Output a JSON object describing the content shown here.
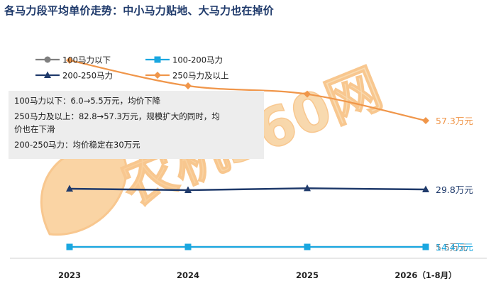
{
  "title": "各马力段平均单价走势：中小马力贴地、大马力也在掉价",
  "note_lines": [
    "100马力以下：6.0→5.5万元，均价下降",
    "250马力及以上：82.8→57.3万元，规模扩大的同时，均",
    "价也在下滑",
    "200-250马力：均价稳定在30万元"
  ],
  "watermark": "农机360网",
  "colors": {
    "below100": "#7f7f7f",
    "r100_200": "#1aa7e0",
    "r200_250": "#1f3a6b",
    "above250": "#f0964a"
  },
  "chart_data": {
    "type": "line",
    "categories": [
      "2023",
      "2024",
      "2025",
      "2026（1-8月）"
    ],
    "legend_position": "top-left",
    "grid": false,
    "series": [
      {
        "key": "below100",
        "name": "100马力以下",
        "marker": "circle",
        "values": [
          6.0,
          5.8,
          5.6,
          5.5
        ],
        "end_label": "5.5万元"
      },
      {
        "key": "r100_200",
        "name": "100-200马力",
        "marker": "square",
        "values": [
          14.6,
          14.3,
          14.6,
          14.4
        ],
        "end_label": "14.4万元"
      },
      {
        "key": "r200_250",
        "name": "200-250马力",
        "marker": "triangle",
        "values": [
          30.1,
          29.5,
          30.3,
          29.8
        ],
        "end_label": "29.8万元"
      },
      {
        "key": "above250",
        "name": "250马力及以上",
        "marker": "diamond",
        "values": [
          82.8,
          72.0,
          68.5,
          57.3
        ],
        "end_label": "57.3万元"
      }
    ]
  }
}
